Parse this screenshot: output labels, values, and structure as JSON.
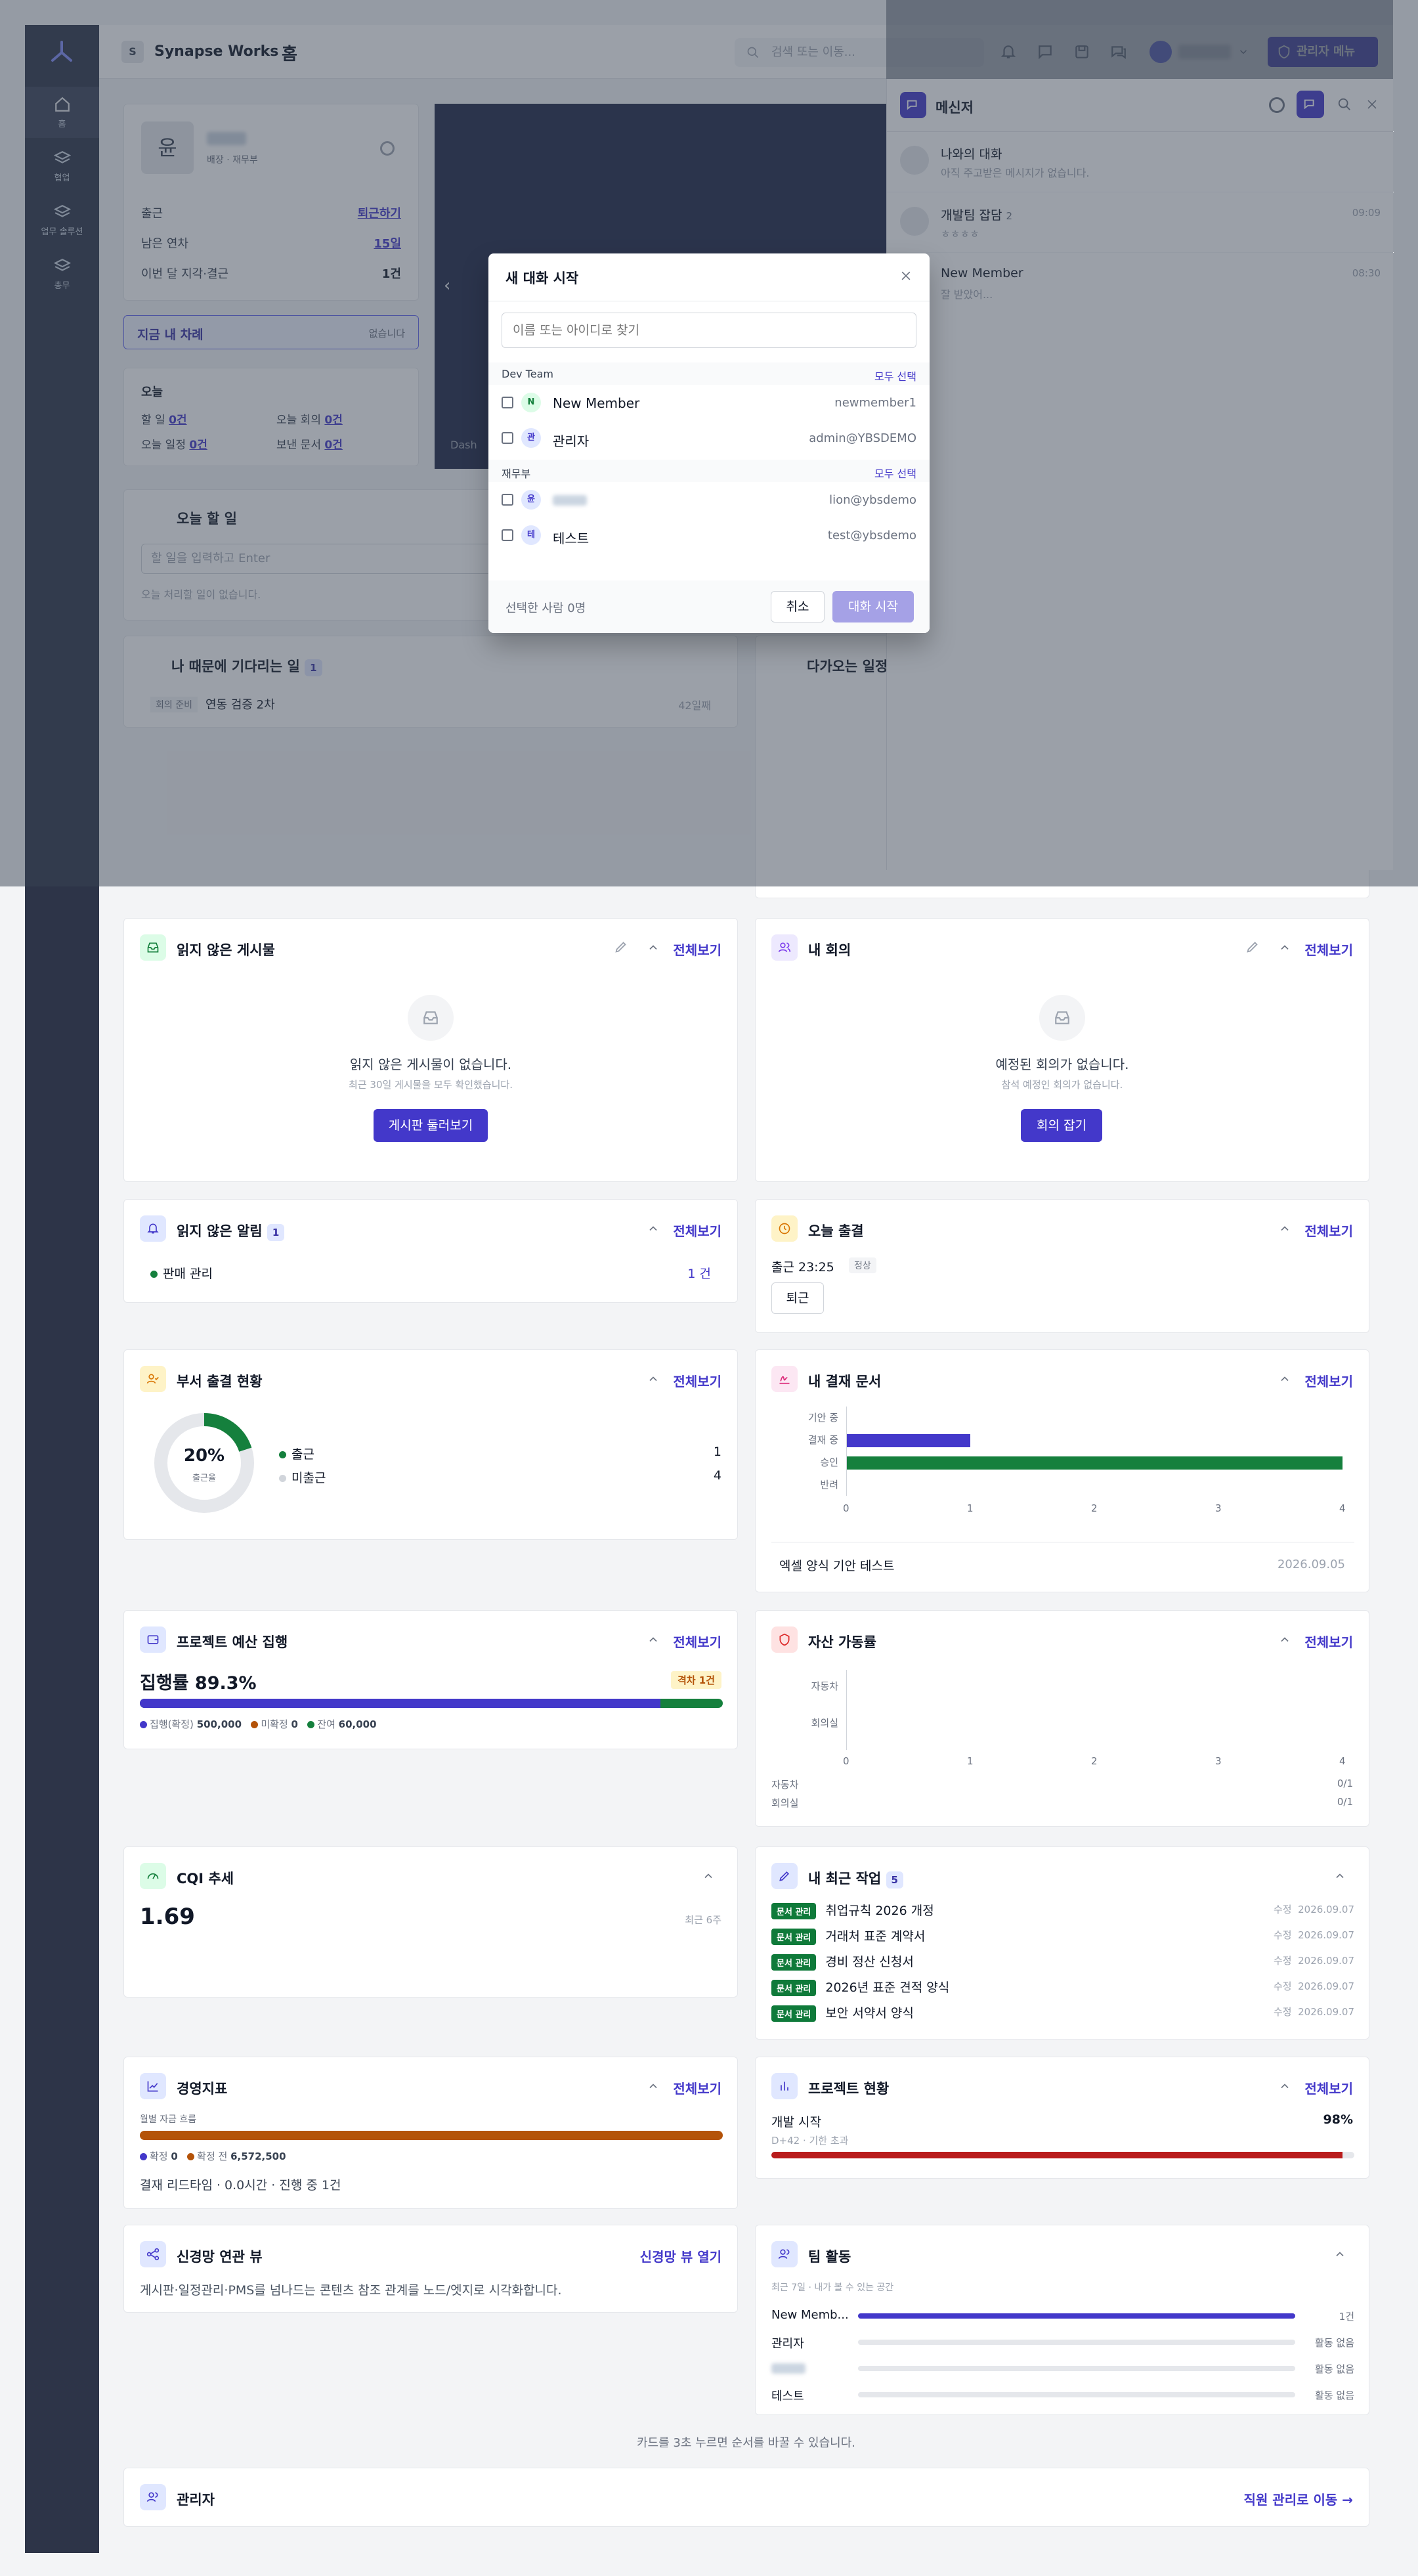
{
  "app": {
    "initial": "S",
    "name": "Synapse Works",
    "page_title": "홈"
  },
  "topbar": {
    "search_placeholder": "검색 또는 이동...",
    "admin_menu": "관리자 메뉴"
  },
  "sidebar": {
    "items": [
      {
        "label": "홈"
      },
      {
        "label": "협업"
      },
      {
        "label": "업무 솔루션"
      },
      {
        "label": "총무"
      }
    ]
  },
  "background": {
    "profile": {
      "avatar": "윤",
      "dept": "배장 · 재무부",
      "rows": [
        {
          "label": "출근",
          "value": "퇴근하기"
        },
        {
          "label": "남은 연차",
          "value": "15일"
        },
        {
          "label": "이번 달 지각·결근",
          "value": "1건"
        }
      ]
    },
    "my_turn": {
      "label": "지금 내 차례",
      "status": "없습니다"
    },
    "today": {
      "title": "오늘",
      "items": [
        {
          "label": "할 일",
          "value": "0건"
        },
        {
          "label": "오늘 회의",
          "value": "0건"
        },
        {
          "label": "오늘 일정",
          "value": "0건"
        },
        {
          "label": "보낸 문서",
          "value": "0건"
        }
      ]
    },
    "todo": {
      "title": "오늘 할 일",
      "placeholder": "할 일을 입력하고 Enter",
      "empty": "오늘 처리할 일이 없습니다."
    },
    "waiting": {
      "title": "나 때문에 기다리는 일",
      "count": "1",
      "tag": "회의 준비",
      "item": "연동 검증 2차",
      "days": "42일째"
    },
    "upcoming": {
      "title": "다가오는 일정"
    },
    "banner_caption": "Dash"
  },
  "messenger": {
    "title": "메신저",
    "conversations": [
      {
        "name": "나와의 대화",
        "preview": "아직 주고받은 메시지가 없습니다.",
        "time": ""
      },
      {
        "name": "개발팀 잡담",
        "count": "2",
        "preview": "ㅎㅎㅎㅎ",
        "time": "09:09"
      },
      {
        "name": "New Member",
        "preview": "잘 받았어...",
        "time": "08:30"
      }
    ]
  },
  "modal": {
    "title": "새 대화 시작",
    "search_placeholder": "이름 또는 아이디로 찾기",
    "groups": [
      {
        "name": "Dev Team",
        "select_all": "모두 선택",
        "members": [
          {
            "avatar": "N",
            "name": "New Member",
            "id": "newmember1"
          },
          {
            "avatar": "관",
            "name": "관리자",
            "id": "admin@YBSDEMO"
          }
        ]
      },
      {
        "name": "재무부",
        "select_all": "모두 선택",
        "members": [
          {
            "avatar": "윤",
            "name": "",
            "id": "lion@ybsdemo"
          },
          {
            "avatar": "테",
            "name": "테스트",
            "id": "test@ybsdemo"
          }
        ]
      }
    ],
    "selected_count": "선택한 사람 0명",
    "cancel": "취소",
    "start": "대화 시작"
  },
  "common": {
    "view_all": "전체보기"
  },
  "unread_posts": {
    "title": "읽지 않은 게시물",
    "empty_title": "읽지 않은 게시물이 없습니다.",
    "empty_sub": "최근 30일 게시물을 모두 확인했습니다.",
    "button": "게시판 둘러보기"
  },
  "my_meetings": {
    "title": "내 회의",
    "empty_title": "예정된 회의가 없습니다.",
    "empty_sub": "참석 예정인 회의가 없습니다.",
    "button": "회의 잡기"
  },
  "unread_alerts": {
    "title": "읽지 않은 알림",
    "count": "1",
    "item": "판매 관리",
    "value": "1 건"
  },
  "today_attendance": {
    "title": "오늘 출결",
    "checkin": "출근 23:25",
    "status": "정상",
    "button": "퇴근"
  },
  "dept_attendance": {
    "title": "부서 출결 현황",
    "percent": "20%",
    "percent_label": "출근율",
    "rate": 0.2,
    "legend": [
      {
        "label": "출근",
        "value": "1",
        "color": "#15803d"
      },
      {
        "label": "미출근",
        "value": "4",
        "color": "#d1d5db"
      }
    ]
  },
  "approval": {
    "title": "내 결재 문서",
    "chart_categories": [
      "기안 중",
      "결재 중",
      "승인",
      "반려"
    ],
    "chart_values": [
      0,
      1,
      4,
      0
    ],
    "ticks": [
      "0",
      "1",
      "2",
      "3",
      "4"
    ],
    "doc_name": "엑셀 양식 기안 테스트",
    "doc_date": "2026.09.05"
  },
  "budget": {
    "title": "프로젝트 예산 집행",
    "rate_text": "집행률 89.3%",
    "warn": "격차 1건",
    "legend": [
      {
        "label": "집행(확정)",
        "value": "500,000"
      },
      {
        "label": "미확정",
        "value": "0"
      },
      {
        "label": "잔여",
        "value": "60,000"
      }
    ],
    "spent_ratio": 0.893
  },
  "assets": {
    "title": "자산 가동률",
    "categories": [
      "자동차",
      "회의실"
    ],
    "ticks": [
      "0",
      "1",
      "2",
      "3",
      "4"
    ],
    "rows": [
      {
        "label": "자동차",
        "value": "0/1"
      },
      {
        "label": "회의실",
        "value": "0/1"
      }
    ]
  },
  "cqi": {
    "title": "CQI 추세",
    "value": "1.69",
    "sub": "최근 6주"
  },
  "recent_work": {
    "title": "내 최근 작업",
    "count": "5",
    "tag": "문서 관리",
    "prefix": "수정",
    "items": [
      {
        "name": "취업규칙 2026 개정",
        "date": "2026.09.07"
      },
      {
        "name": "거래처 표준 계약서",
        "date": "2026.09.07"
      },
      {
        "name": "경비 정산 신청서",
        "date": "2026.09.07"
      },
      {
        "name": "2026년 표준 견적 양식",
        "date": "2026.09.07"
      },
      {
        "name": "보안 서약서 양식",
        "date": "2026.09.07"
      }
    ]
  },
  "kpi": {
    "title": "경영지표",
    "sub": "월별 자금 흐름",
    "legend": [
      {
        "label": "확정",
        "value": "0"
      },
      {
        "label": "확정 전",
        "value": "6,572,500"
      }
    ],
    "footer": "결재 리드타임 · 0.0시간 · 진행 중 1건"
  },
  "project_status": {
    "title": "프로젝트 현황",
    "name": "개발 시작",
    "percent": "98%",
    "ratio": 0.98,
    "sub": "D+42 · 기한 초과"
  },
  "graph_view": {
    "title": "신경망 연관 뷰",
    "link": "신경망 뷰 열기",
    "desc": "게시판·일정관리·PMS를 넘나드는 콘텐츠 참조 관계를 노드/엣지로 시각화합니다."
  },
  "team_activity": {
    "title": "팀 활동",
    "sub": "최근 7일 · 내가 볼 수 있는 공간",
    "rows": [
      {
        "name": "New Memb...",
        "value": "1건",
        "ratio": 1
      },
      {
        "name": "관리자",
        "value": "활동 없음",
        "ratio": 0
      },
      {
        "name": "",
        "value": "활동 없음",
        "ratio": 0
      },
      {
        "name": "테스트",
        "value": "활동 없음",
        "ratio": 0
      }
    ]
  },
  "reorder_hint": "카드를 3초 누르면 순서를 바꿀 수 있습니다.",
  "admin_card": {
    "title": "관리자",
    "link": "직원 관리로 이동 →"
  }
}
